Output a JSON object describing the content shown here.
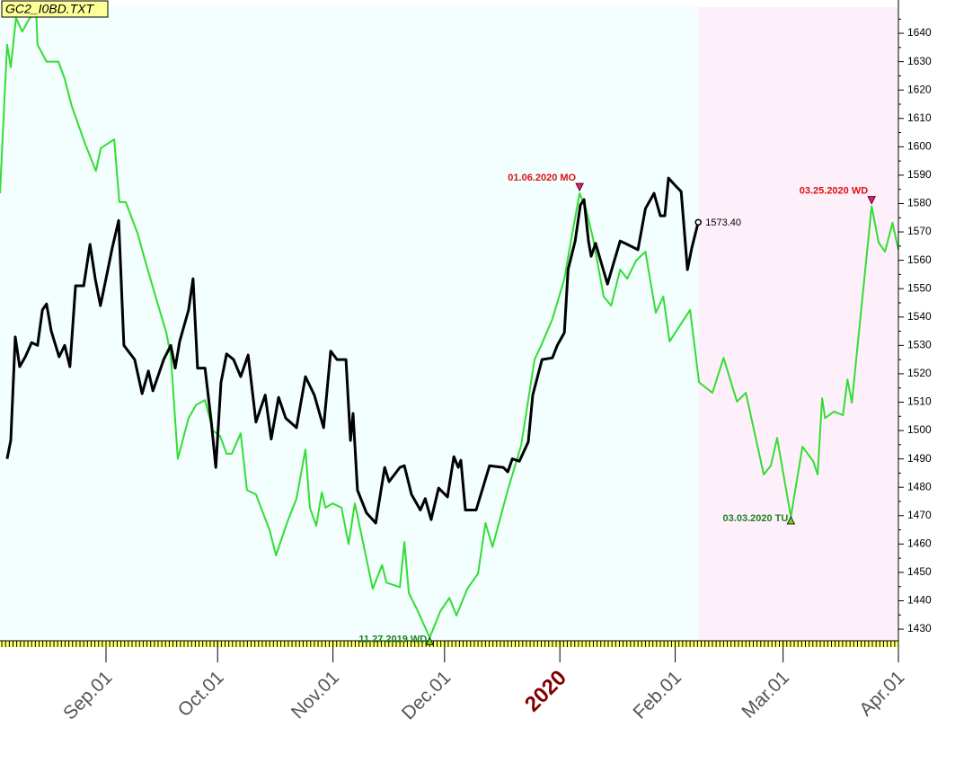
{
  "chart_data": {
    "type": "line",
    "title": "GC2_I0BD.TXT",
    "xlim": [
      2.5,
      244
    ],
    "xticks": [
      {
        "value": 31,
        "label": "Sep.01"
      },
      {
        "value": 61,
        "label": "Oct.01"
      },
      {
        "value": 92,
        "label": "Nov.01"
      },
      {
        "value": 122,
        "label": "Dec.01"
      },
      {
        "value": 153,
        "label": "2020"
      },
      {
        "value": 184,
        "label": "Feb.01"
      },
      {
        "value": 213,
        "label": "Mar.01"
      },
      {
        "value": 244,
        "label": "Apr.01"
      }
    ],
    "ylim": [
      1425.9,
      1649.2
    ],
    "yticks": [
      1430,
      1440,
      1450,
      1460,
      1470,
      1480,
      1490,
      1500,
      1510,
      1520,
      1530,
      1540,
      1550,
      1560,
      1570,
      1580,
      1590,
      1600,
      1610,
      1620,
      1630,
      1640
    ],
    "grid": false,
    "series": [
      {
        "color": "#000000",
        "x": [
          4.4,
          5.4,
          6.6,
          7.8,
          9.3,
          11,
          12.6,
          13.9,
          15,
          16.3,
          18.4,
          19.9,
          21.3,
          22.8,
          25,
          26.7,
          28.1,
          29.5,
          31,
          32.7,
          34.4,
          35.8,
          38.7,
          40.7,
          42.4,
          43.6,
          46.5,
          48.4,
          49.6,
          50.8,
          53.2,
          54.4,
          55.6,
          57.6,
          59.3,
          60.5,
          61.9,
          63.4,
          65.3,
          67.2,
          69.2,
          71.3,
          73.8,
          75.4,
          77.4,
          79.3,
          82.2,
          84.6,
          87,
          89.5,
          91.4,
          93.1,
          95.5,
          96.7,
          97.4,
          98.6,
          101,
          103.5,
          105.9,
          107.1,
          110,
          111.2,
          113.1,
          115.5,
          116.8,
          118.4,
          120.4,
          122.8,
          124.5,
          125.7,
          126.4,
          127.6,
          130.5,
          132.5,
          134.1,
          137.8,
          139,
          140.2,
          142.1,
          144.5,
          145.7,
          148.2,
          151,
          152.3,
          154.2,
          155.2,
          157.1,
          158.5,
          159.5,
          160.7,
          161.4,
          162.6,
          164.3,
          165.8,
          167.5,
          169.2,
          171.1,
          174,
          176,
          178.3,
          180,
          181.2,
          182.2,
          183.7,
          185.6,
          187.3,
          188.5,
          190.2
        ],
        "values": [
          1490,
          1496.5,
          1533,
          1522.5,
          1526,
          1531,
          1530,
          1542.5,
          1544.6,
          1535,
          1526,
          1530,
          1522.5,
          1551,
          1551,
          1565.6,
          1553.5,
          1544,
          1553.5,
          1564.6,
          1574,
          1530,
          1525,
          1513,
          1521,
          1514,
          1525,
          1530,
          1522,
          1531.4,
          1542.5,
          1553.5,
          1522,
          1522,
          1503,
          1487,
          1517,
          1527,
          1525,
          1519,
          1526.6,
          1503,
          1512.5,
          1497,
          1511.7,
          1504.4,
          1501,
          1519,
          1512.5,
          1501,
          1528,
          1525,
          1525,
          1496.5,
          1506,
          1479,
          1471,
          1467.4,
          1487,
          1482,
          1487,
          1487.6,
          1477.5,
          1472,
          1476,
          1468.6,
          1479.7,
          1476.6,
          1490.8,
          1487,
          1489.5,
          1472,
          1472,
          1480.7,
          1487.6,
          1487,
          1485.4,
          1490,
          1489.2,
          1496,
          1512.5,
          1525,
          1525.6,
          1530,
          1534.5,
          1556.7,
          1566.8,
          1579.5,
          1581.4,
          1566.6,
          1561.4,
          1566,
          1558.3,
          1551.6,
          1559.2,
          1566.8,
          1565.6,
          1563.7,
          1578.2,
          1583.6,
          1575.7,
          1575.7,
          1589,
          1586.8,
          1584.2,
          1556.7,
          1564.6,
          1573.4
        ]
      },
      {
        "color": "#33dd33",
        "x": [
          2.5,
          4.4,
          5.4,
          6.8,
          8.5,
          10.2,
          12.2,
          12.6,
          15,
          18.2,
          19.9,
          21.8,
          25.4,
          28.3,
          29.6,
          33.2,
          34.6,
          36.3,
          39.5,
          41.2,
          43.6,
          47.2,
          48.4,
          50.3,
          53.2,
          55.2,
          57.6,
          59.7,
          61.7,
          63.4,
          64.8,
          67.2,
          68.9,
          71.3,
          75,
          76.7,
          79.8,
          82.2,
          84.6,
          85.8,
          87.5,
          89,
          90,
          91.9,
          94.3,
          96.2,
          97.9,
          102.7,
          105.2,
          106.4,
          110,
          111.2,
          112.4,
          114.8,
          118,
          120.9,
          123.3,
          125.2,
          128.1,
          131,
          133,
          134.9,
          139,
          142.6,
          146.2,
          147.9,
          151,
          154.2,
          155.9,
          158.3,
          160,
          161.9,
          164.8,
          166.8,
          169.2,
          171.1,
          173.5,
          176,
          178.8,
          180.8,
          182.5,
          188,
          190.4,
          194,
          197,
          200.6,
          203,
          207.8,
          209.7,
          211.4,
          215.1,
          218.2,
          221.1,
          222.3,
          223.5,
          224.3,
          226.7,
          229.1,
          230.3,
          231.5,
          236.8,
          238.7,
          240.4,
          242.4,
          244
        ],
        "values": [
          1583.6,
          1636,
          1628,
          1645.4,
          1640.6,
          1644.8,
          1648,
          1636,
          1630,
          1630,
          1624,
          1614.3,
          1601,
          1591.5,
          1599.5,
          1602.6,
          1580.5,
          1580.5,
          1569.4,
          1561.4,
          1550.4,
          1534.5,
          1526.6,
          1490,
          1504.4,
          1509,
          1510.7,
          1500,
          1498,
          1491.8,
          1491.8,
          1499,
          1479,
          1477.5,
          1464.8,
          1456,
          1468,
          1476,
          1493.3,
          1472.8,
          1466.4,
          1478.2,
          1472.8,
          1474.3,
          1472.8,
          1460,
          1474.3,
          1444.2,
          1452.6,
          1446.4,
          1444.8,
          1460.7,
          1442.7,
          1436.4,
          1427,
          1436.4,
          1441,
          1434.8,
          1444.2,
          1449.6,
          1467.4,
          1459,
          1479,
          1494.8,
          1525,
          1529.8,
          1539.3,
          1553.5,
          1566.2,
          1583.6,
          1578.2,
          1567.8,
          1547.2,
          1544,
          1556.7,
          1553.5,
          1559.9,
          1563,
          1541.5,
          1547.2,
          1531.4,
          1542.5,
          1517,
          1513.3,
          1525.6,
          1510.2,
          1513.3,
          1484.5,
          1487.6,
          1497.4,
          1469.6,
          1494.3,
          1489.2,
          1484.5,
          1511.4,
          1504.4,
          1506.7,
          1505.4,
          1518,
          1509.8,
          1579,
          1566.2,
          1563,
          1573.2,
          1563.7
        ]
      }
    ],
    "annotations": [
      {
        "text": "01.06.2020 MO",
        "x": 158.3,
        "y": 1583.6,
        "color": "#e01010"
      },
      {
        "text": "03.25.2020 WD",
        "x": 236.8,
        "y": 1579,
        "color": "#e01010"
      },
      {
        "text": "11.27.2019 WD",
        "x": 118,
        "y": 1427,
        "color": "#208020"
      },
      {
        "text": "03.03.2020 TU",
        "x": 215.1,
        "y": 1469.6,
        "color": "#208020"
      },
      {
        "text": "1573.40",
        "x": 190.2,
        "y": 1573.4,
        "color": "#000000"
      }
    ]
  }
}
